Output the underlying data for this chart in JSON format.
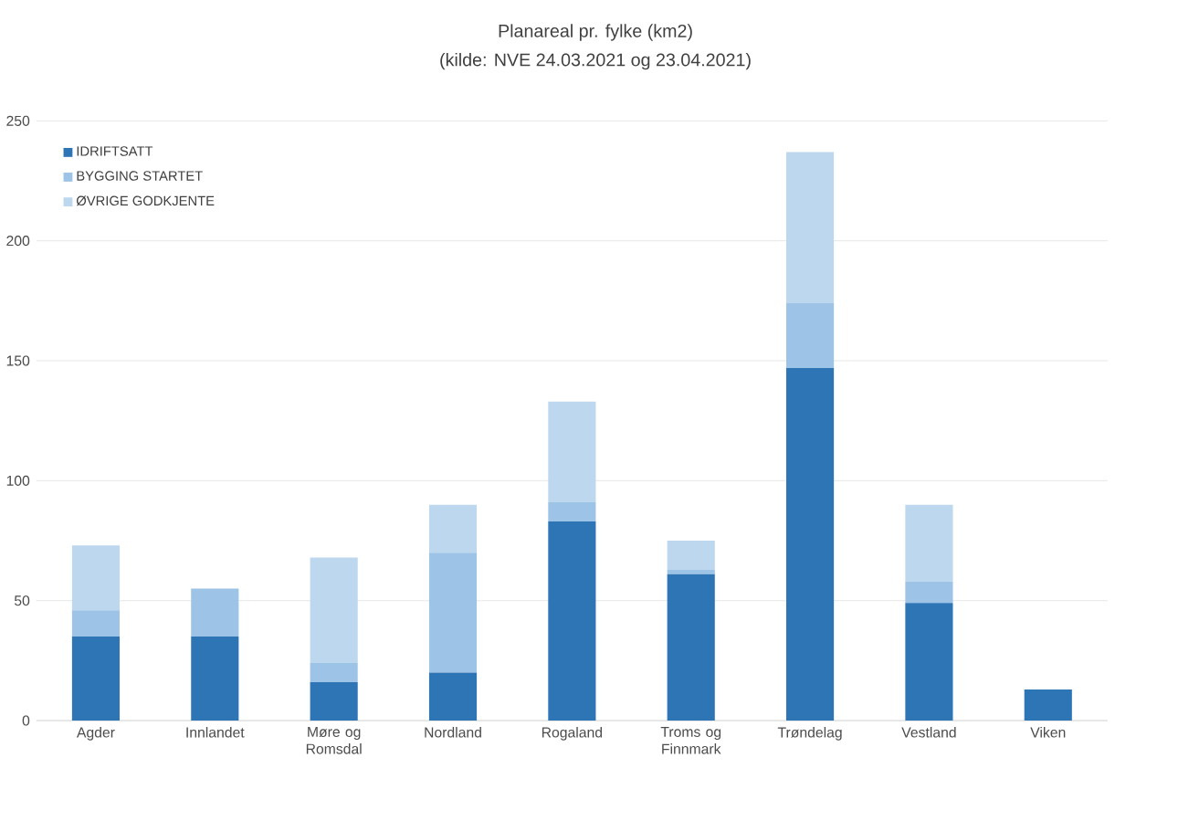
{
  "chart_data": {
    "type": "bar",
    "title": "Planareal pr. fylke (km2)",
    "subtitle": "(kilde: NVE 24.03.2021 og 23.04.2021)",
    "categories": [
      "Agder",
      "Innlandet",
      "Møre og Romsdal",
      "Nordland",
      "Rogaland",
      "Troms og Finnmark",
      "Trøndelag",
      "Vestland",
      "Viken"
    ],
    "stacked": true,
    "series": [
      {
        "name": "IDRIFTSATT",
        "color": "#2e75b6",
        "values": [
          35,
          35,
          16,
          20,
          83,
          61,
          147,
          49,
          13
        ]
      },
      {
        "name": "BYGGING STARTET",
        "color": "#9dc3e6",
        "values": [
          11,
          20,
          8,
          50,
          8,
          2,
          27,
          9,
          null
        ]
      },
      {
        "name": "ØVRIGE GODKJENTE",
        "color": "#bdd7ee",
        "values": [
          27,
          null,
          44,
          20,
          42,
          12,
          63,
          32,
          null
        ]
      }
    ],
    "ylim": [
      0,
      250
    ],
    "yticks": [
      0,
      50,
      100,
      150,
      200,
      250
    ],
    "grid": "y",
    "legend": "top left"
  }
}
